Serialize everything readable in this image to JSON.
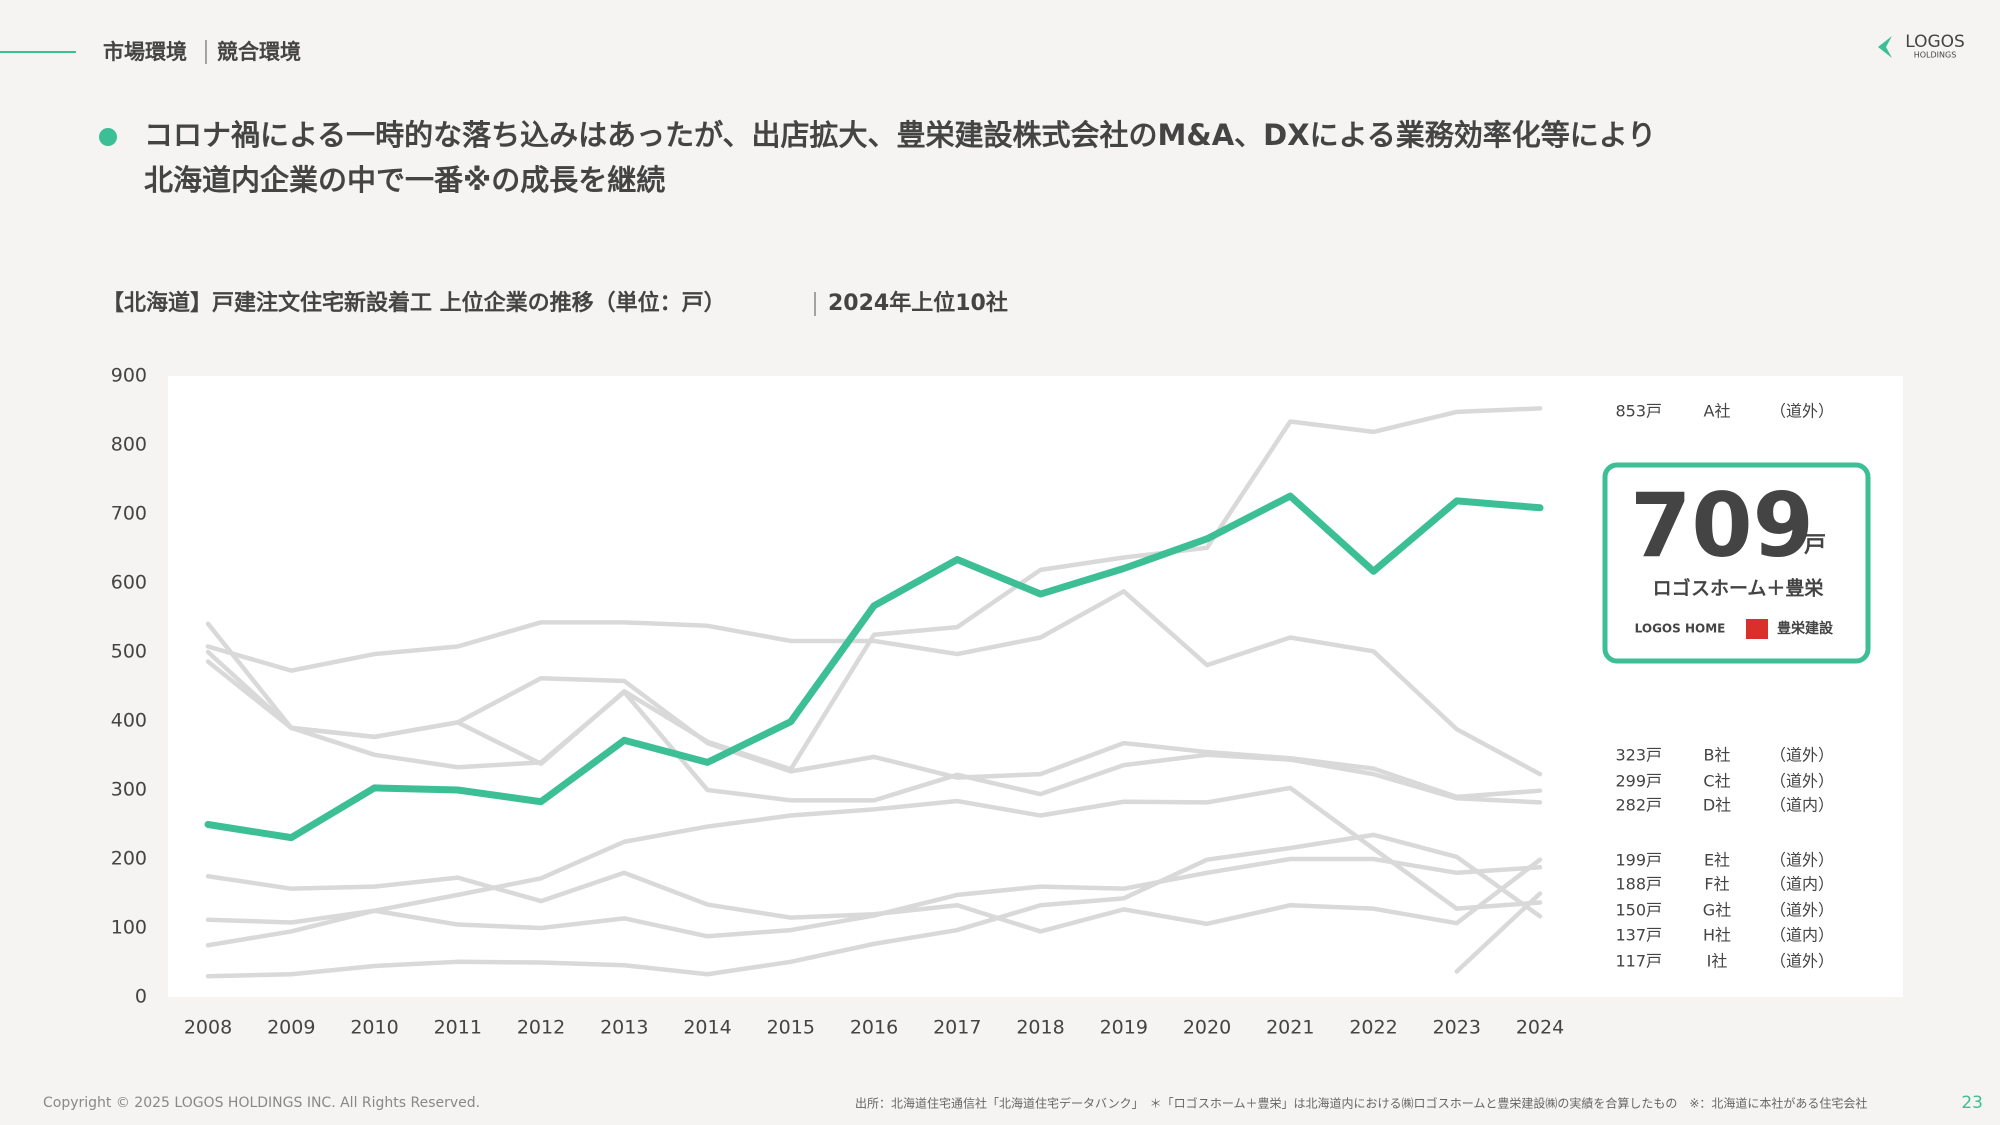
{
  "header": {
    "section": "市場環境",
    "topic": "競合環境",
    "logo": "LOGOS",
    "logo_sub": "HOLDINGS"
  },
  "headline": {
    "line1": "コロナ禍による一時的な落ち込みはあったが、出店拡大、豊栄建設株式会社のM&A、DXによる業務効率化等により",
    "line2": "北海道内企業の中で一番※の成長を継続"
  },
  "chart_data": {
    "type": "line",
    "title": "【北海道】戸建注文住宅新設着工 上位企業の推移（単位：戸）",
    "subtitle": "2024年上位10社",
    "categories": [
      "2008",
      "2009",
      "2010",
      "2011",
      "2012",
      "2013",
      "2014",
      "2015",
      "2016",
      "2017",
      "2018",
      "2019",
      "2020",
      "2021",
      "2022",
      "2023",
      "2024"
    ],
    "ylim": [
      0,
      900
    ],
    "yticks": [
      0,
      100,
      200,
      300,
      400,
      500,
      600,
      700,
      800,
      900
    ],
    "highlight": {
      "unit": "戸",
      "logos": [
        "LOGOS HOME",
        "豊栄建設"
      ]
    },
    "series": [
      {
        "name": "ロゴスホーム＋豊栄",
        "color": "#3dbf96",
        "values": [
          250,
          231,
          303,
          300,
          283,
          372,
          340,
          399,
          567,
          634,
          584,
          621,
          664,
          726,
          617,
          719,
          709
        ],
        "value_labels": [
          null,
          null,
          null,
          null,
          null,
          null,
          null,
          null,
          null,
          null,
          null,
          null,
          null,
          null,
          null,
          null,
          "709"
        ]
      },
      {
        "name": "A社",
        "region": "（道外）",
        "color": "#d9d9d9",
        "values": [
          541,
          390,
          377,
          398,
          338,
          443,
          370,
          330,
          525,
          536,
          619,
          637,
          651,
          834,
          819,
          848,
          853
        ],
        "value_labels": [
          null,
          null,
          null,
          null,
          null,
          null,
          null,
          null,
          null,
          null,
          null,
          null,
          null,
          null,
          null,
          null,
          "853戸"
        ]
      },
      {
        "name": "B社",
        "region": "（道外）",
        "color": "#d9d9d9",
        "values": [
          508,
          473,
          497,
          508,
          543,
          543,
          538,
          516,
          516,
          497,
          521,
          588,
          481,
          521,
          501,
          388,
          323
        ],
        "value_labels": [
          null,
          null,
          null,
          null,
          null,
          null,
          null,
          null,
          null,
          null,
          null,
          null,
          null,
          null,
          null,
          null,
          "323戸"
        ]
      },
      {
        "name": "C社",
        "region": "（道外）",
        "color": "#d9d9d9",
        "values": [
          486,
          390,
          377,
          398,
          462,
          458,
          368,
          327,
          348,
          318,
          323,
          368,
          355,
          346,
          331,
          290,
          299
        ],
        "value_labels": [
          null,
          null,
          null,
          null,
          null,
          null,
          null,
          null,
          null,
          null,
          null,
          null,
          null,
          null,
          null,
          null,
          "299戸"
        ]
      },
      {
        "name": "D社",
        "region": "（道内）",
        "color": "#d9d9d9",
        "values": [
          500,
          390,
          351,
          333,
          340,
          442,
          300,
          285,
          285,
          322,
          294,
          336,
          351,
          344,
          323,
          288,
          282
        ],
        "value_labels": [
          null,
          null,
          null,
          null,
          null,
          null,
          null,
          null,
          null,
          null,
          null,
          null,
          null,
          null,
          null,
          null,
          "282戸"
        ]
      },
      {
        "name": "E社",
        "region": "（道外）",
        "color": "#d9d9d9",
        "values": [
          175,
          157,
          160,
          173,
          139,
          180,
          134,
          115,
          120,
          133,
          95,
          127,
          106,
          133,
          128,
          107,
          199
        ],
        "value_labels": [
          null,
          null,
          null,
          null,
          null,
          null,
          null,
          null,
          null,
          null,
          null,
          null,
          null,
          null,
          null,
          null,
          "199戸"
        ]
      },
      {
        "name": "F社",
        "region": "（道内）",
        "color": "#d9d9d9",
        "values": [
          112,
          108,
          125,
          105,
          100,
          114,
          88,
          97,
          118,
          148,
          160,
          157,
          180,
          200,
          200,
          180,
          188
        ],
        "value_labels": [
          null,
          null,
          null,
          null,
          null,
          null,
          null,
          null,
          null,
          null,
          null,
          null,
          null,
          null,
          null,
          null,
          "188戸"
        ]
      },
      {
        "name": "G社",
        "region": "（道外）",
        "color": "#d9d9d9",
        "values": [
          null,
          null,
          null,
          null,
          null,
          null,
          null,
          null,
          null,
          null,
          null,
          null,
          null,
          null,
          null,
          37,
          150
        ],
        "value_labels": [
          null,
          null,
          null,
          null,
          null,
          null,
          null,
          null,
          null,
          null,
          null,
          null,
          null,
          null,
          null,
          null,
          "150戸"
        ]
      },
      {
        "name": "H社",
        "region": "（道内）",
        "color": "#d9d9d9",
        "values": [
          75,
          95,
          125,
          148,
          172,
          225,
          247,
          263,
          272,
          284,
          263,
          283,
          282,
          303,
          215,
          128,
          137
        ],
        "value_labels": [
          null,
          null,
          null,
          null,
          null,
          null,
          null,
          null,
          null,
          null,
          null,
          null,
          null,
          null,
          null,
          null,
          "137戸"
        ]
      },
      {
        "name": "I社",
        "region": "（道外）",
        "color": "#d9d9d9",
        "values": [
          30,
          33,
          45,
          51,
          50,
          46,
          33,
          51,
          77,
          97,
          133,
          143,
          199,
          216,
          235,
          203,
          117
        ],
        "value_labels": [
          null,
          null,
          null,
          null,
          null,
          null,
          null,
          null,
          null,
          null,
          null,
          null,
          null,
          null,
          null,
          null,
          "117戸"
        ]
      }
    ]
  },
  "footer": {
    "copyright": "Copyright © 2025 LOGOS HOLDINGS INC. All Rights Reserved.",
    "source": "出所：北海道住宅通信社「北海道住宅データバンク」　＊「ロゴスホーム＋豊栄」は北海道内における㈱ロゴスホームと豊栄建設㈱の実績を合算したもの　※：北海道に本社がある住宅会社",
    "page": "23"
  }
}
